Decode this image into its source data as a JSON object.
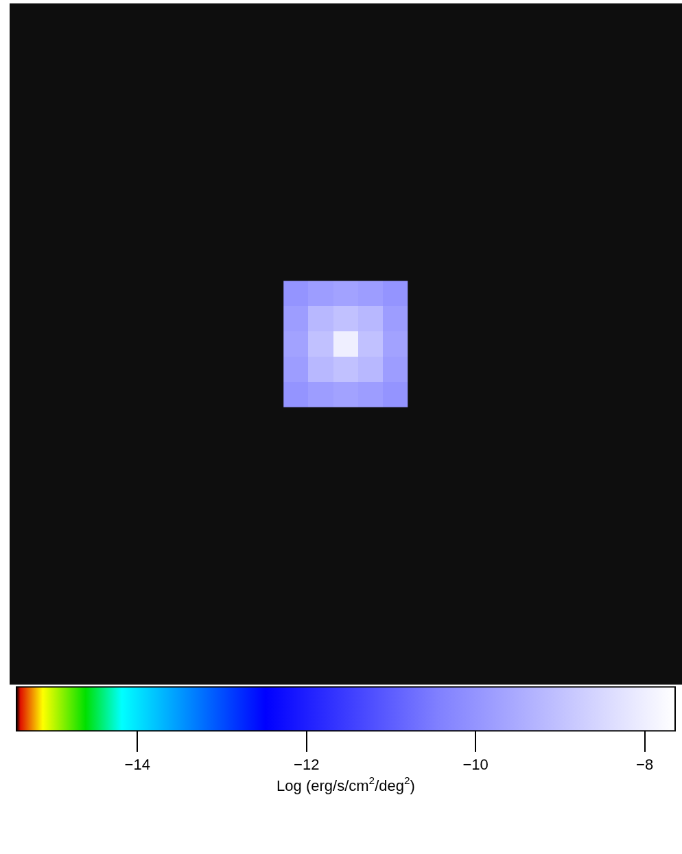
{
  "chart_data": {
    "type": "heatmap",
    "clabel": "Log (erg/s/cm$^{2}$/deg$^{2}$)",
    "clim": [
      -15.43,
      -7.64
    ],
    "cticks": [
      -14,
      -12,
      -10,
      -8
    ],
    "categories": [
      null,
      null,
      null,
      null,
      null
    ],
    "y_categories": [
      null,
      null,
      null,
      null,
      null
    ],
    "cells": [
      [
        -10.0,
        -9.8,
        -9.7,
        -9.8,
        -10.0
      ],
      [
        -9.8,
        -9.2,
        -9.0,
        -9.2,
        -9.8
      ],
      [
        -9.7,
        -9.0,
        -8.0,
        -9.0,
        -9.7
      ],
      [
        -9.8,
        -9.2,
        -9.0,
        -9.2,
        -9.8
      ],
      [
        -10.0,
        -9.8,
        -9.7,
        -9.8,
        -10.0
      ]
    ]
  }
}
